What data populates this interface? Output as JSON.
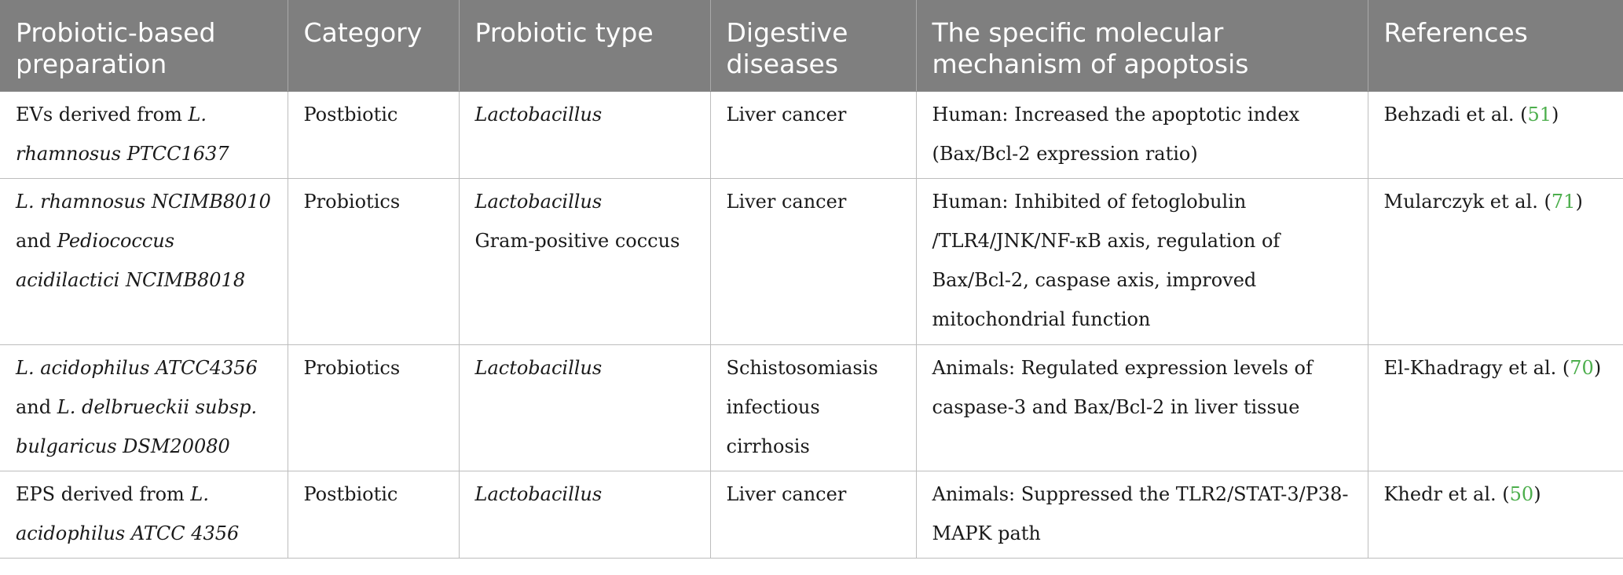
{
  "headers": [
    "Probiotic-based preparation",
    "Category",
    "Probiotic type",
    "Digestive diseases",
    "The specific molecular mechanism of apoptosis",
    "References"
  ],
  "rows": [
    {
      "prep": [
        "EVs derived from ",
        "L. rhamnosus PTCC1637"
      ],
      "category": "Postbiotic",
      "type": [
        "Lactobacillus"
      ],
      "disease": "Liver cancer",
      "mechanism": "Human: Increased the apoptotic index (Bax/Bcl-2 expression ratio)",
      "ref_text": "Behzadi et al. (",
      "ref_num": "51",
      "ref_close": ")"
    },
    {
      "prep": [
        "L. rhamnosus NCIMB8010",
        " and ",
        "Pediococcus acidilactici NCIMB8018"
      ],
      "category": "Probiotics",
      "type": [
        "Lactobacillus",
        "Gram-positive coccus"
      ],
      "disease": "Liver cancer",
      "mechanism": "Human: Inhibited of fetoglobulin /TLR4/JNK/NF-κB axis, regulation of Bax/Bcl-2, caspase axis, improved mitochondrial function",
      "ref_text": "Mularczyk et al. (",
      "ref_num": "71",
      "ref_close": ")"
    },
    {
      "prep": [
        "L. acidophilus ATCC4356",
        " and ",
        "L. delbrueckii subsp. bulgaricus DSM20080"
      ],
      "category": "Probiotics",
      "type": [
        "Lactobacillus"
      ],
      "disease": "Schistosomiasis infectious cirrhosis",
      "mechanism": "Animals: Regulated expression levels of caspase-3 and Bax/Bcl-2 in liver tissue",
      "ref_text": "El-Khadragy et al. (",
      "ref_num": "70",
      "ref_close": ")"
    },
    {
      "prep": [
        "EPS derived from ",
        "L. acidophilus ATCC 4356"
      ],
      "category": "Postbiotic",
      "type": [
        "Lactobacillus"
      ],
      "disease": "Liver cancer",
      "mechanism": "Animals: Suppressed the TLR2/STAT-3/P38-MAPK path",
      "ref_text": "Khedr et al. (",
      "ref_num": "50",
      "ref_close": ")"
    }
  ]
}
